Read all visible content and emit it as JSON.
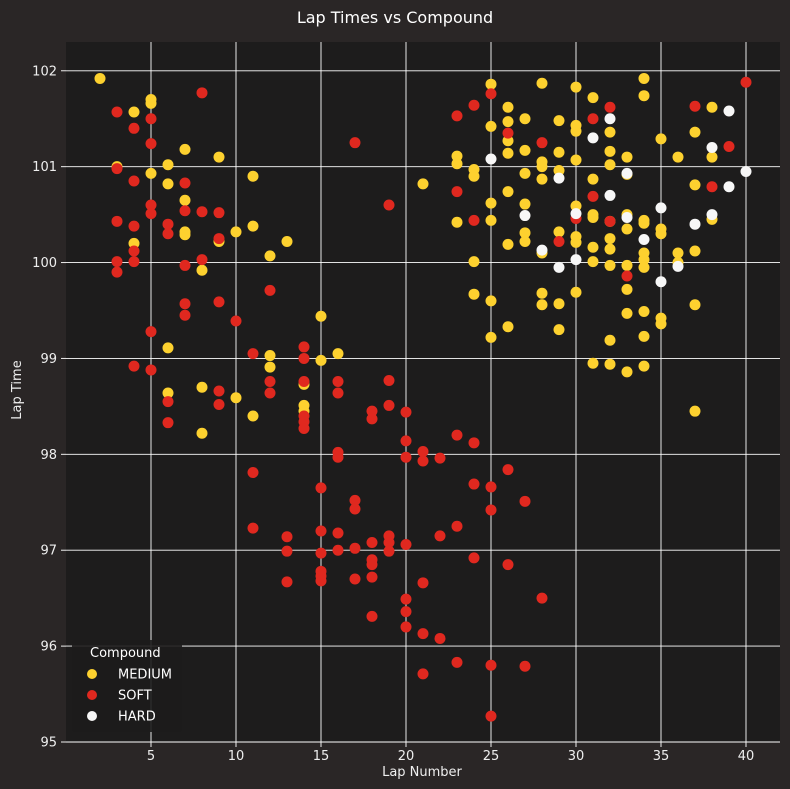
{
  "chart_data": {
    "type": "scatter",
    "title": "Lap Times vs Compound",
    "xlabel": "Lap Number",
    "ylabel": "Lap Time",
    "xlim": [
      0,
      42
    ],
    "ylim": [
      95,
      102.3
    ],
    "xticks": [
      5,
      10,
      15,
      20,
      25,
      30,
      35,
      40
    ],
    "yticks": [
      95,
      96,
      97,
      98,
      99,
      100,
      101,
      102
    ],
    "grid": true,
    "legend": {
      "title": "Compound",
      "placement": "lower-left"
    },
    "series": [
      {
        "name": "MEDIUM",
        "color": "#fdd12f",
        "points": [
          [
            2,
            101.92
          ],
          [
            3,
            101.0
          ],
          [
            4,
            101.57
          ],
          [
            4,
            100.2
          ],
          [
            5,
            101.7
          ],
          [
            5,
            101.66
          ],
          [
            5,
            100.93
          ],
          [
            6,
            101.02
          ],
          [
            6,
            100.82
          ],
          [
            6,
            99.11
          ],
          [
            6,
            98.64
          ],
          [
            7,
            101.18
          ],
          [
            7,
            100.65
          ],
          [
            7,
            100.32
          ],
          [
            7,
            100.29
          ],
          [
            8,
            99.92
          ],
          [
            8,
            98.7
          ],
          [
            8,
            98.22
          ],
          [
            9,
            101.1
          ],
          [
            9,
            100.22
          ],
          [
            10,
            100.32
          ],
          [
            10,
            98.59
          ],
          [
            11,
            100.9
          ],
          [
            11,
            100.38
          ],
          [
            11,
            98.4
          ],
          [
            12,
            100.07
          ],
          [
            12,
            99.03
          ],
          [
            12,
            98.91
          ],
          [
            13,
            100.22
          ],
          [
            14,
            98.73
          ],
          [
            14,
            98.51
          ],
          [
            14,
            98.45
          ],
          [
            15,
            99.44
          ],
          [
            15,
            98.98
          ],
          [
            16,
            99.05
          ],
          [
            21,
            100.82
          ],
          [
            23,
            101.11
          ],
          [
            23,
            101.03
          ],
          [
            23,
            100.42
          ],
          [
            24,
            100.97
          ],
          [
            24,
            100.9
          ],
          [
            24,
            100.01
          ],
          [
            24,
            99.67
          ],
          [
            25,
            101.86
          ],
          [
            25,
            101.42
          ],
          [
            25,
            100.62
          ],
          [
            25,
            100.44
          ],
          [
            25,
            99.6
          ],
          [
            25,
            99.22
          ],
          [
            26,
            101.62
          ],
          [
            26,
            101.47
          ],
          [
            26,
            101.27
          ],
          [
            26,
            101.14
          ],
          [
            26,
            100.74
          ],
          [
            26,
            100.19
          ],
          [
            26,
            99.33
          ],
          [
            27,
            101.5
          ],
          [
            27,
            101.17
          ],
          [
            27,
            100.93
          ],
          [
            27,
            100.61
          ],
          [
            27,
            100.31
          ],
          [
            27,
            100.22
          ],
          [
            28,
            101.87
          ],
          [
            28,
            101.05
          ],
          [
            28,
            101.0
          ],
          [
            28,
            100.87
          ],
          [
            28,
            100.1
          ],
          [
            28,
            99.68
          ],
          [
            28,
            99.56
          ],
          [
            29,
            101.48
          ],
          [
            29,
            101.15
          ],
          [
            29,
            100.96
          ],
          [
            29,
            100.32
          ],
          [
            29,
            99.57
          ],
          [
            29,
            99.3
          ],
          [
            30,
            101.83
          ],
          [
            30,
            101.43
          ],
          [
            30,
            101.37
          ],
          [
            30,
            101.07
          ],
          [
            30,
            100.59
          ],
          [
            30,
            100.27
          ],
          [
            30,
            100.21
          ],
          [
            30,
            99.69
          ],
          [
            31,
            101.72
          ],
          [
            31,
            100.87
          ],
          [
            31,
            100.5
          ],
          [
            31,
            100.47
          ],
          [
            31,
            100.16
          ],
          [
            31,
            100.01
          ],
          [
            31,
            98.95
          ],
          [
            32,
            101.36
          ],
          [
            32,
            101.16
          ],
          [
            32,
            101.02
          ],
          [
            32,
            100.43
          ],
          [
            32,
            100.25
          ],
          [
            32,
            100.14
          ],
          [
            32,
            99.97
          ],
          [
            32,
            99.19
          ],
          [
            32,
            98.94
          ],
          [
            33,
            101.1
          ],
          [
            33,
            100.92
          ],
          [
            33,
            100.5
          ],
          [
            33,
            100.35
          ],
          [
            33,
            99.97
          ],
          [
            33,
            99.72
          ],
          [
            33,
            99.47
          ],
          [
            33,
            98.86
          ],
          [
            34,
            101.92
          ],
          [
            34,
            101.74
          ],
          [
            34,
            100.44
          ],
          [
            34,
            100.41
          ],
          [
            34,
            100.1
          ],
          [
            34,
            100.03
          ],
          [
            34,
            99.95
          ],
          [
            34,
            99.49
          ],
          [
            34,
            99.23
          ],
          [
            34,
            98.92
          ],
          [
            35,
            101.29
          ],
          [
            35,
            100.35
          ],
          [
            35,
            100.3
          ],
          [
            35,
            99.42
          ],
          [
            35,
            99.36
          ],
          [
            36,
            101.1
          ],
          [
            36,
            100.1
          ],
          [
            36,
            100.0
          ],
          [
            37,
            101.36
          ],
          [
            37,
            100.81
          ],
          [
            37,
            100.12
          ],
          [
            37,
            99.56
          ],
          [
            37,
            98.45
          ],
          [
            38,
            101.62
          ],
          [
            38,
            101.1
          ],
          [
            38,
            100.45
          ]
        ]
      },
      {
        "name": "SOFT",
        "color": "#e0281f",
        "points": [
          [
            3,
            101.57
          ],
          [
            3,
            100.98
          ],
          [
            3,
            100.43
          ],
          [
            3,
            100.01
          ],
          [
            3,
            99.9
          ],
          [
            4,
            101.4
          ],
          [
            4,
            100.85
          ],
          [
            4,
            100.38
          ],
          [
            4,
            100.12
          ],
          [
            4,
            100.01
          ],
          [
            4,
            98.92
          ],
          [
            5,
            101.5
          ],
          [
            5,
            101.24
          ],
          [
            5,
            100.6
          ],
          [
            5,
            100.51
          ],
          [
            5,
            99.28
          ],
          [
            5,
            98.88
          ],
          [
            6,
            100.4
          ],
          [
            6,
            100.3
          ],
          [
            6,
            98.55
          ],
          [
            6,
            98.33
          ],
          [
            7,
            100.83
          ],
          [
            7,
            100.54
          ],
          [
            7,
            99.97
          ],
          [
            7,
            99.57
          ],
          [
            7,
            99.45
          ],
          [
            8,
            101.77
          ],
          [
            8,
            100.53
          ],
          [
            8,
            100.03
          ],
          [
            9,
            100.52
          ],
          [
            9,
            100.25
          ],
          [
            9,
            99.59
          ],
          [
            9,
            98.66
          ],
          [
            9,
            98.52
          ],
          [
            10,
            99.39
          ],
          [
            11,
            99.05
          ],
          [
            11,
            97.81
          ],
          [
            11,
            97.23
          ],
          [
            12,
            99.71
          ],
          [
            12,
            98.76
          ],
          [
            12,
            98.64
          ],
          [
            13,
            97.14
          ],
          [
            13,
            96.99
          ],
          [
            13,
            96.67
          ],
          [
            14,
            99.12
          ],
          [
            14,
            99.0
          ],
          [
            14,
            98.76
          ],
          [
            14,
            98.4
          ],
          [
            14,
            98.34
          ],
          [
            14,
            98.27
          ],
          [
            15,
            97.65
          ],
          [
            15,
            97.2
          ],
          [
            15,
            96.97
          ],
          [
            15,
            96.78
          ],
          [
            15,
            96.73
          ],
          [
            15,
            96.68
          ],
          [
            16,
            98.76
          ],
          [
            16,
            98.64
          ],
          [
            16,
            98.02
          ],
          [
            16,
            97.97
          ],
          [
            16,
            97.18
          ],
          [
            16,
            97.0
          ],
          [
            17,
            101.25
          ],
          [
            17,
            97.52
          ],
          [
            17,
            97.43
          ],
          [
            17,
            97.02
          ],
          [
            17,
            96.7
          ],
          [
            18,
            98.45
          ],
          [
            18,
            98.37
          ],
          [
            18,
            97.08
          ],
          [
            18,
            96.9
          ],
          [
            18,
            96.85
          ],
          [
            18,
            96.72
          ],
          [
            18,
            96.31
          ],
          [
            19,
            100.6
          ],
          [
            19,
            98.77
          ],
          [
            19,
            98.51
          ],
          [
            19,
            97.15
          ],
          [
            19,
            97.08
          ],
          [
            19,
            96.99
          ],
          [
            20,
            98.44
          ],
          [
            20,
            98.14
          ],
          [
            20,
            97.97
          ],
          [
            20,
            97.06
          ],
          [
            20,
            96.49
          ],
          [
            20,
            96.36
          ],
          [
            20,
            96.2
          ],
          [
            21,
            98.03
          ],
          [
            21,
            97.93
          ],
          [
            21,
            96.66
          ],
          [
            21,
            96.13
          ],
          [
            21,
            95.71
          ],
          [
            22,
            97.96
          ],
          [
            22,
            97.15
          ],
          [
            22,
            96.08
          ],
          [
            23,
            101.53
          ],
          [
            23,
            100.74
          ],
          [
            23,
            98.2
          ],
          [
            23,
            97.25
          ],
          [
            23,
            95.83
          ],
          [
            24,
            101.64
          ],
          [
            24,
            100.44
          ],
          [
            24,
            98.12
          ],
          [
            24,
            97.69
          ],
          [
            24,
            96.92
          ],
          [
            25,
            101.76
          ],
          [
            25,
            97.66
          ],
          [
            25,
            97.42
          ],
          [
            25,
            95.8
          ],
          [
            25,
            95.27
          ],
          [
            26,
            101.35
          ],
          [
            26,
            97.84
          ],
          [
            26,
            96.85
          ],
          [
            27,
            97.51
          ],
          [
            27,
            95.79
          ],
          [
            28,
            101.25
          ],
          [
            28,
            96.5
          ],
          [
            29,
            100.22
          ],
          [
            30,
            100.46
          ],
          [
            31,
            101.5
          ],
          [
            31,
            100.69
          ],
          [
            32,
            101.62
          ],
          [
            32,
            100.43
          ],
          [
            33,
            99.86
          ],
          [
            37,
            101.63
          ],
          [
            38,
            100.79
          ],
          [
            39,
            101.21
          ],
          [
            40,
            101.88
          ]
        ]
      },
      {
        "name": "HARD",
        "color": "#f7f7f7",
        "points": [
          [
            25,
            101.08
          ],
          [
            27,
            100.49
          ],
          [
            28,
            100.13
          ],
          [
            29,
            100.88
          ],
          [
            29,
            99.95
          ],
          [
            30,
            100.51
          ],
          [
            30,
            100.03
          ],
          [
            31,
            101.3
          ],
          [
            32,
            101.5
          ],
          [
            32,
            100.7
          ],
          [
            33,
            100.93
          ],
          [
            33,
            100.47
          ],
          [
            34,
            100.24
          ],
          [
            35,
            100.57
          ],
          [
            35,
            99.8
          ],
          [
            36,
            99.96
          ],
          [
            37,
            100.4
          ],
          [
            38,
            101.2
          ],
          [
            38,
            100.5
          ],
          [
            39,
            101.58
          ],
          [
            39,
            100.79
          ],
          [
            40,
            100.95
          ]
        ]
      }
    ]
  },
  "colors": {
    "figure_bg": "#2a2626",
    "axes_bg": "#1d1c1c",
    "grid": "#ffffff",
    "text": "#eeeeee"
  }
}
